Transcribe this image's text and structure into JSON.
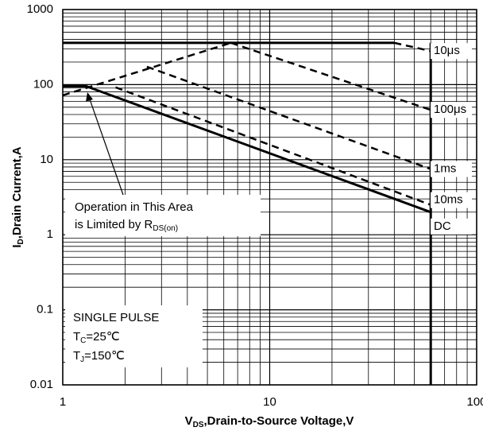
{
  "chart_data": {
    "type": "line",
    "xlabel": {
      "main": "V",
      "sub": "DS",
      "rest": ",Drain-to-Source Voltage,V"
    },
    "ylabel": {
      "main": "I",
      "sub": "D",
      "rest": ",Drain Current,A"
    },
    "xlog": true,
    "ylog": true,
    "grid": true,
    "minor_grid": true,
    "xlim": [
      1,
      100
    ],
    "xticks": [
      1,
      10,
      100
    ],
    "ylim": [
      0.01,
      1000
    ],
    "yticks": [
      0.01,
      0.1,
      1,
      10,
      100,
      1000
    ],
    "series": [
      {
        "x": [
          1,
          40
        ],
        "values": [
          360,
          360
        ],
        "dashed": false,
        "color": "#000000"
      },
      {
        "x": [
          1,
          6.5
        ],
        "values": [
          72,
          360
        ],
        "dashed": true,
        "color": "#000000"
      },
      {
        "name": "10μs",
        "x": [
          40,
          60
        ],
        "values": [
          360,
          280
        ],
        "dashed": true,
        "color": "#000000"
      },
      {
        "name": "100μs",
        "x": [
          6.5,
          60
        ],
        "values": [
          360,
          46
        ],
        "dashed": true,
        "color": "#000000"
      },
      {
        "name": "1ms",
        "x": [
          2.55,
          60
        ],
        "values": [
          173,
          7.5
        ],
        "dashed": true,
        "color": "#000000"
      },
      {
        "name": "10ms",
        "x": [
          1.8,
          60
        ],
        "values": [
          92,
          2.5
        ],
        "dashed": true,
        "color": "#000000"
      },
      {
        "name": "DC",
        "x": [
          1,
          1.3,
          60
        ],
        "values": [
          95,
          95,
          2
        ],
        "dashed": false,
        "color": "#000000"
      },
      {
        "x": [
          60,
          60
        ],
        "values": [
          360,
          0.01
        ],
        "dashed": false,
        "color": "#000000"
      }
    ],
    "annotations": {
      "area_line1": "Operation in This Area",
      "area_line2": {
        "main": "is Limited by R",
        "sub": "DS(on)"
      },
      "pulse": "SINGLE PULSE",
      "tc": {
        "main": "T",
        "sub": "C",
        "rest": "=25℃"
      },
      "tj": {
        "main": "T",
        "sub": "J",
        "rest": "=150℃"
      }
    }
  }
}
